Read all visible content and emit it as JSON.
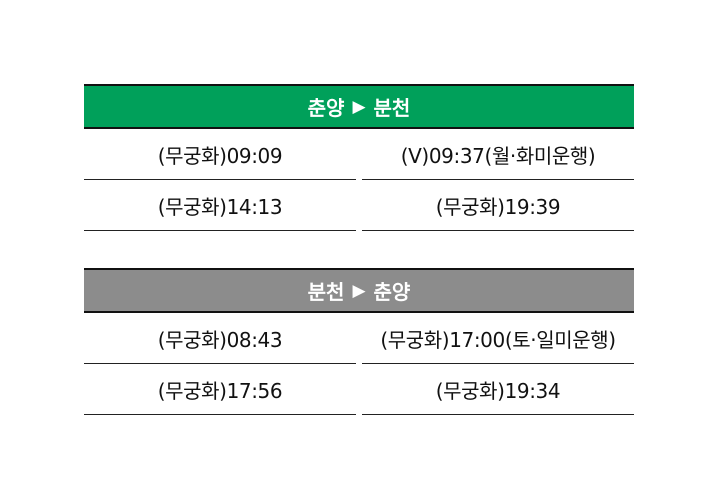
{
  "colors": {
    "header_green": "#00A05A",
    "header_gray": "#8C8C8C",
    "header_text": "#FFFFFF",
    "rule_line": "#111111"
  },
  "tables": [
    {
      "origin": "춘양",
      "arrow": "▶",
      "destination": "분천",
      "rows": [
        [
          "(무궁화)09:09",
          "(V)09:37(월·화미운행)"
        ],
        [
          "(무궁화)14:13",
          "(무궁화)19:39"
        ]
      ]
    },
    {
      "origin": "분천",
      "arrow": "▶",
      "destination": "춘양",
      "rows": [
        [
          "(무궁화)08:43",
          "(무궁화)17:00(토·일미운행)"
        ],
        [
          "(무궁화)17:56",
          "(무궁화)19:34"
        ]
      ]
    }
  ]
}
